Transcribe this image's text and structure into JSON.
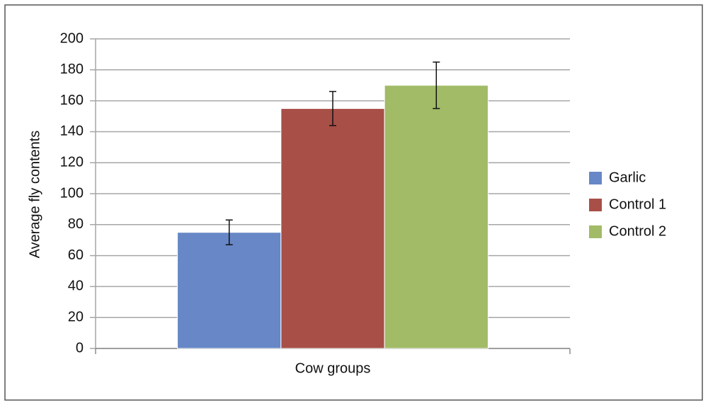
{
  "chart_data": {
    "type": "bar",
    "xlabel": "Cow groups",
    "ylabel": "Average fly contents",
    "categories": [
      null
    ],
    "series": [
      {
        "name": "Garlic",
        "color": "#6787c6",
        "values": [
          75
        ],
        "errors": [
          8
        ]
      },
      {
        "name": "Control 1",
        "color": "#a84f48",
        "values": [
          155
        ],
        "errors": [
          11
        ]
      },
      {
        "name": "Control 2",
        "color": "#a1bb66",
        "values": [
          170
        ],
        "errors": [
          15
        ]
      }
    ],
    "ylim": [
      0,
      200
    ],
    "yticks": [
      0,
      20,
      40,
      60,
      80,
      100,
      120,
      140,
      160,
      180,
      200
    ],
    "grid": true,
    "legend": "right"
  }
}
